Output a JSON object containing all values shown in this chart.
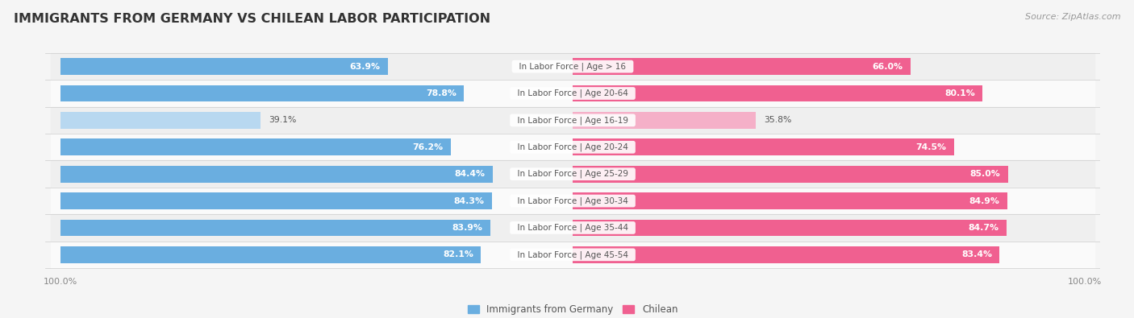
{
  "title": "IMMIGRANTS FROM GERMANY VS CHILEAN LABOR PARTICIPATION",
  "source": "Source: ZipAtlas.com",
  "categories": [
    "In Labor Force | Age > 16",
    "In Labor Force | Age 20-64",
    "In Labor Force | Age 16-19",
    "In Labor Force | Age 20-24",
    "In Labor Force | Age 25-29",
    "In Labor Force | Age 30-34",
    "In Labor Force | Age 35-44",
    "In Labor Force | Age 45-54"
  ],
  "germany_values": [
    63.9,
    78.8,
    39.1,
    76.2,
    84.4,
    84.3,
    83.9,
    82.1
  ],
  "chilean_values": [
    66.0,
    80.1,
    35.8,
    74.5,
    85.0,
    84.9,
    84.7,
    83.4
  ],
  "germany_color": "#6aaee0",
  "germany_color_light": "#b8d8f0",
  "chilean_color": "#f06090",
  "chilean_color_light": "#f5b0c8",
  "bar_height": 0.62,
  "background_color": "#f5f5f5",
  "row_bg_even": "#efefef",
  "row_bg_odd": "#fafafa",
  "max_val": 100.0,
  "title_fontsize": 11.5,
  "label_fontsize": 7.5,
  "value_fontsize": 7.8,
  "legend_fontsize": 8.5,
  "axis_label_fontsize": 8.0
}
